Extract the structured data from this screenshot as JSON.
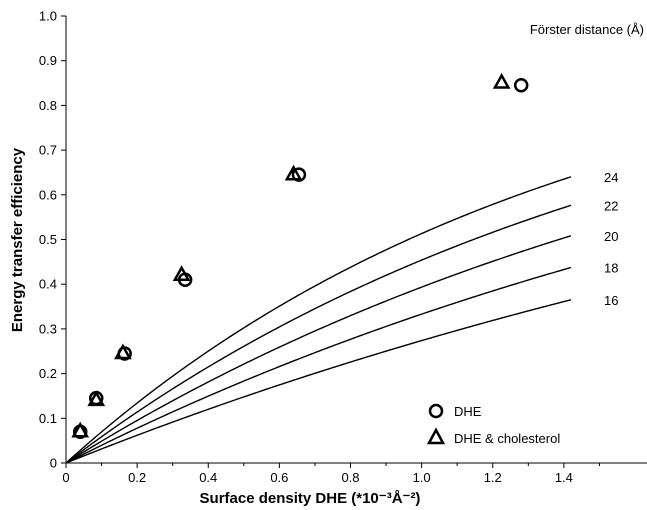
{
  "chart_data": {
    "type": "line",
    "xlabel": "Surface density DHE (*10⁻³Å⁻²)",
    "ylabel": "Energy transfer efficiency",
    "xlim": [
      0,
      1.6
    ],
    "ylim": [
      0,
      1.0
    ],
    "x_ticks": [
      "0",
      "0.2",
      "0.4",
      "0.6",
      "0.8",
      "1.0",
      "1.2",
      "1.4"
    ],
    "y_ticks": [
      "0",
      "0.1",
      "0.2",
      "0.3",
      "0.4",
      "0.5",
      "0.6",
      "0.7",
      "0.8",
      "0.9",
      "1.0"
    ],
    "curve_group_title": "Förster distance (Å)",
    "curves": [
      {
        "label": "24",
        "R0": 24
      },
      {
        "label": "22",
        "R0": 22
      },
      {
        "label": "20",
        "R0": 20
      },
      {
        "label": "18",
        "R0": 18
      },
      {
        "label": "16",
        "R0": 16
      }
    ],
    "curve_x_max": 1.42,
    "series": [
      {
        "name": "DHE",
        "marker": "circle",
        "points": [
          [
            0.04,
            0.07
          ],
          [
            0.085,
            0.145
          ],
          [
            0.165,
            0.245
          ],
          [
            0.335,
            0.41
          ],
          [
            0.655,
            0.645
          ],
          [
            1.28,
            0.845
          ]
        ]
      },
      {
        "name": "DHE & cholesterol",
        "marker": "triangle",
        "points": [
          [
            0.04,
            0.07
          ],
          [
            0.085,
            0.14
          ],
          [
            0.16,
            0.245
          ],
          [
            0.325,
            0.42
          ],
          [
            0.64,
            0.645
          ],
          [
            1.225,
            0.85
          ]
        ]
      }
    ],
    "legend_position": "bottom-right",
    "grid": false
  }
}
